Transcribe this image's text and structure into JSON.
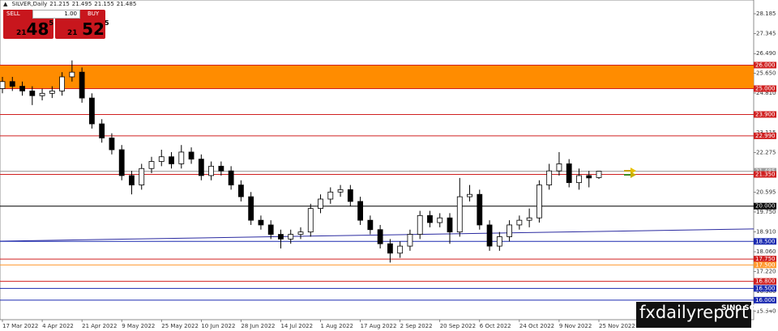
{
  "header": {
    "symbol": "SILVER,Daily",
    "ohlc": [
      21.215,
      21.495,
      21.155,
      21.485
    ]
  },
  "trade_panel": {
    "sell": "SELL",
    "lot": "1.00",
    "buy": "BUY",
    "bid_small": "21",
    "bid_big": "48",
    "bid_sup": "5",
    "ask_small": "21",
    "ask_big": "52",
    "ask_sup": "5"
  },
  "watermark": {
    "brand": "fxdailyreport",
    "logo": "SINO SOUND"
  },
  "chart_data": {
    "type": "candlestick",
    "categories": [
      "17 Mar 2022",
      null,
      null,
      null,
      "4 Apr 2022",
      null,
      null,
      null,
      "21 Apr 2022",
      null,
      null,
      null,
      "9 May 2022",
      null,
      null,
      null,
      "25 May 2022",
      null,
      null,
      null,
      "10 Jun 2022",
      null,
      null,
      null,
      "28 Jun 2022",
      null,
      null,
      null,
      "14 Jul 2022",
      null,
      null,
      null,
      "1 Aug 2022",
      null,
      null,
      null,
      "17 Aug 2022",
      null,
      null,
      null,
      "2 Sep 2022",
      null,
      null,
      null,
      "20 Sep 2022",
      null,
      null,
      null,
      "6 Oct 2022",
      null,
      null,
      null,
      "24 Oct 2022",
      null,
      null,
      null,
      "9 Nov 2022",
      null,
      null,
      null,
      "25 Nov 2022"
    ],
    "open": [
      25.0,
      25.3,
      25.1,
      24.9,
      24.7,
      24.8,
      24.9,
      25.5,
      25.7,
      24.6,
      23.5,
      22.9,
      22.4,
      21.3,
      20.9,
      21.6,
      21.9,
      22.1,
      21.8,
      22.3,
      22.0,
      21.3,
      21.7,
      21.5,
      20.9,
      20.4,
      19.4,
      19.2,
      18.8,
      18.6,
      18.8,
      18.9,
      19.9,
      20.3,
      20.6,
      20.7,
      20.2,
      19.4,
      19.0,
      18.4,
      18.0,
      18.3,
      18.8,
      19.6,
      19.3,
      19.5,
      18.9,
      20.4,
      20.5,
      19.2,
      18.3,
      18.7,
      19.2,
      19.4,
      19.5,
      20.9,
      21.5,
      21.8,
      21.0,
      21.3,
      21.215
    ],
    "high": [
      25.5,
      25.5,
      25.3,
      25.1,
      25.0,
      25.1,
      25.7,
      26.2,
      25.9,
      24.8,
      23.7,
      23.1,
      22.6,
      21.5,
      21.8,
      22.1,
      22.4,
      22.3,
      22.6,
      22.5,
      22.2,
      21.9,
      21.9,
      21.7,
      21.1,
      20.6,
      19.6,
      19.4,
      19.0,
      19.0,
      19.1,
      20.1,
      20.5,
      20.8,
      20.9,
      20.9,
      20.4,
      19.6,
      19.2,
      18.6,
      18.5,
      19.0,
      19.8,
      19.8,
      19.7,
      19.7,
      21.2,
      20.9,
      20.7,
      19.4,
      18.9,
      19.4,
      19.6,
      19.9,
      21.1,
      21.8,
      22.3,
      22.0,
      21.6,
      21.5,
      21.495
    ],
    "low": [
      24.8,
      24.9,
      24.7,
      24.3,
      24.5,
      24.6,
      24.7,
      25.3,
      24.4,
      23.3,
      22.7,
      22.2,
      21.1,
      20.5,
      20.7,
      21.4,
      21.7,
      21.6,
      21.6,
      21.8,
      21.1,
      21.1,
      21.3,
      20.7,
      20.2,
      19.2,
      19.0,
      18.6,
      18.2,
      18.4,
      18.6,
      18.7,
      19.7,
      20.1,
      20.4,
      20.0,
      19.2,
      18.8,
      18.2,
      17.6,
      17.8,
      18.1,
      18.6,
      19.1,
      19.1,
      18.4,
      18.7,
      20.2,
      19.0,
      18.1,
      18.1,
      18.5,
      19.0,
      19.1,
      19.3,
      20.7,
      21.3,
      20.8,
      20.7,
      20.8,
      21.155
    ],
    "close": [
      25.3,
      25.1,
      24.9,
      24.7,
      24.8,
      24.9,
      25.5,
      25.7,
      24.6,
      23.5,
      22.9,
      22.4,
      21.3,
      20.9,
      21.6,
      21.9,
      22.1,
      21.8,
      22.3,
      22.0,
      21.3,
      21.7,
      21.5,
      20.9,
      20.4,
      19.4,
      19.2,
      18.8,
      18.6,
      18.8,
      18.9,
      19.9,
      20.3,
      20.6,
      20.7,
      20.2,
      19.4,
      19.0,
      18.4,
      18.0,
      18.3,
      18.8,
      19.6,
      19.3,
      19.5,
      18.9,
      20.4,
      20.5,
      19.2,
      18.3,
      18.7,
      19.2,
      19.4,
      19.5,
      20.9,
      21.5,
      21.8,
      21.0,
      21.3,
      21.2,
      21.485
    ],
    "up_color": "#ffffff",
    "down_color": "#000000",
    "ylim": [
      15.17,
      28.77
    ],
    "yticks": [
      28.185,
      27.345,
      {
        "value": 26.49,
        "label": "26.490"
      },
      {
        "value": 25.65,
        "label": "25.650"
      },
      {
        "value": 24.81,
        "label": "24.810"
      },
      23.115,
      22.275,
      20.595,
      {
        "value": 19.75,
        "label": "19.750"
      },
      {
        "value": 18.91,
        "label": "18.910"
      },
      {
        "value": 18.06,
        "label": "18.060"
      },
      {
        "value": 17.22,
        "label": "17.220"
      },
      {
        "value": 16.38,
        "label": "16.380"
      },
      {
        "value": 15.54,
        "label": "15.540"
      }
    ],
    "zone": {
      "from": 25,
      "to": 26,
      "color": "#ff8c00"
    },
    "trendline": {
      "from": 18.51,
      "to": 19.03,
      "color": "#2a2aa0"
    },
    "levels": [
      {
        "value": 26,
        "label": "26.000",
        "color": "#d02020"
      },
      {
        "value": 25,
        "label": "25.000",
        "color": "#d02020"
      },
      {
        "value": 23.9,
        "label": "23.900",
        "color": "#d02020"
      },
      {
        "value": 22.99,
        "label": "22.990",
        "color": "#d02020"
      },
      {
        "value": 21.485,
        "label": "21.485",
        "color": "#9a9a9a"
      },
      {
        "value": 21.35,
        "label": "21.350",
        "color": "#d02020"
      },
      {
        "value": 20,
        "label": "20.000",
        "color": "#000000"
      },
      {
        "value": 18.5,
        "label": "18.500",
        "color": "#1a2ab0"
      },
      {
        "value": 17.75,
        "label": "17.750",
        "color": "#d02020"
      },
      {
        "value": 17.5,
        "label": "17.500",
        "color": "#ff9a30"
      },
      {
        "value": 16.8,
        "label": "16.800",
        "color": "#d02020"
      },
      {
        "value": 16.5,
        "label": "16.500",
        "color": "#1a2ab0"
      },
      {
        "value": 16,
        "label": "16.000",
        "color": "#1a2ab0"
      }
    ]
  }
}
